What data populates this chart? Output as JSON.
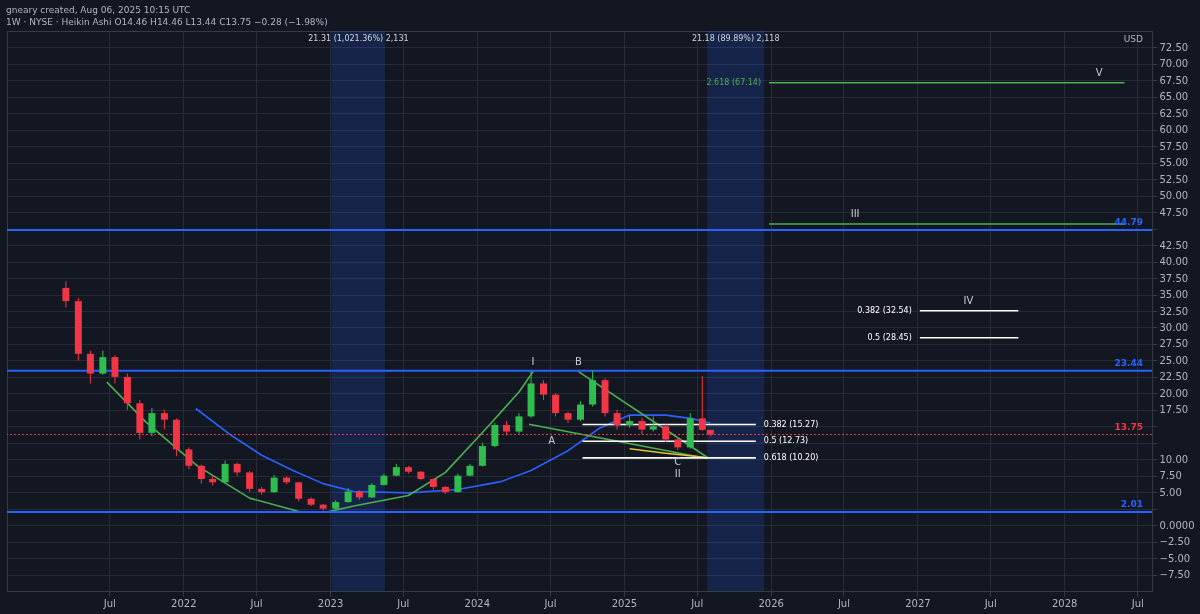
{
  "chart_data": {
    "type": "candlestick",
    "title": "gneary created, Aug 06, 2025 10:15 UTC",
    "subtitle": "1W · NYSE · Heikin Ashi  O14.46  H14.46  L13.44  C13.75  −0.28 (−1.98%)",
    "x": [
      "2021-03-15",
      "2021-04-15",
      "2021-05-15",
      "2021-06-15",
      "2021-07-15",
      "2021-08-15",
      "2021-09-15",
      "2021-10-15",
      "2021-11-15",
      "2021-12-15",
      "2022-01-15",
      "2022-02-15",
      "2022-03-15",
      "2022-04-15",
      "2022-05-15",
      "2022-06-15",
      "2022-07-15",
      "2022-08-15",
      "2022-09-15",
      "2022-10-15",
      "2022-11-15",
      "2022-12-15",
      "2023-01-15",
      "2023-02-15",
      "2023-03-15",
      "2023-04-15",
      "2023-05-15",
      "2023-06-15",
      "2023-07-15",
      "2023-08-15",
      "2023-09-15",
      "2023-10-15",
      "2023-11-15",
      "2023-12-15",
      "2024-01-15",
      "2024-02-15",
      "2024-03-15",
      "2024-04-15",
      "2024-05-15",
      "2024-06-15",
      "2024-07-15",
      "2024-08-15",
      "2024-09-15",
      "2024-10-15",
      "2024-11-15",
      "2024-12-15",
      "2025-01-15",
      "2025-02-15",
      "2025-03-15",
      "2025-04-15",
      "2025-05-15",
      "2025-06-15",
      "2025-07-15",
      "2025-08-04"
    ],
    "ohlc": [
      [
        36,
        37,
        33,
        34
      ],
      [
        34,
        34.5,
        25,
        26
      ],
      [
        26,
        26.5,
        21.5,
        23
      ],
      [
        23,
        26.5,
        22.8,
        25.5
      ],
      [
        25.5,
        25.8,
        21.5,
        22.5
      ],
      [
        22.5,
        23,
        17.5,
        18.5
      ],
      [
        18.5,
        19,
        13,
        14
      ],
      [
        14,
        17.8,
        13.5,
        17
      ],
      [
        17,
        17.5,
        14.5,
        16
      ],
      [
        16,
        16.2,
        10.5,
        11.5
      ],
      [
        11.5,
        11.8,
        8.5,
        9
      ],
      [
        9,
        9.2,
        6.3,
        7
      ],
      [
        7,
        7.5,
        6,
        6.5
      ],
      [
        6.5,
        9.8,
        6.3,
        9.3
      ],
      [
        9.3,
        9.5,
        7.5,
        8
      ],
      [
        8,
        8.2,
        5,
        5.5
      ],
      [
        5.5,
        5.8,
        4.6,
        5
      ],
      [
        5,
        7.6,
        4.9,
        7.2
      ],
      [
        7.2,
        7.4,
        6.2,
        6.5
      ],
      [
        6.5,
        6.6,
        3.6,
        4
      ],
      [
        4,
        4.2,
        2.9,
        3.1
      ],
      [
        3.1,
        3.2,
        2.2,
        2.5
      ],
      [
        2.5,
        3.8,
        2.4,
        3.5
      ],
      [
        3.5,
        5.6,
        3.4,
        5.1
      ],
      [
        5.1,
        5.3,
        3.8,
        4.2
      ],
      [
        4.2,
        6.4,
        4.1,
        6.1
      ],
      [
        6.1,
        7.8,
        6,
        7.5
      ],
      [
        7.5,
        9.3,
        7.4,
        8.8
      ],
      [
        8.8,
        9,
        7.8,
        8.1
      ],
      [
        8.1,
        8.2,
        6.8,
        7
      ],
      [
        7,
        7.1,
        5.4,
        5.8
      ],
      [
        5.8,
        5.9,
        4.7,
        5
      ],
      [
        5,
        7.8,
        4.9,
        7.5
      ],
      [
        7.5,
        9.3,
        7.4,
        9
      ],
      [
        9,
        12.5,
        8.9,
        12
      ],
      [
        12,
        15.5,
        11.8,
        15.2
      ],
      [
        15.2,
        15.8,
        13.6,
        14.2
      ],
      [
        14.2,
        17,
        13.9,
        16.5
      ],
      [
        16.5,
        23.4,
        16.3,
        21.5
      ],
      [
        21.5,
        22,
        19,
        19.8
      ],
      [
        19.8,
        20,
        16.5,
        17
      ],
      [
        17,
        17.2,
        15.5,
        16
      ],
      [
        16,
        18.8,
        15.8,
        18.3
      ],
      [
        18.3,
        23.4,
        18,
        22
      ],
      [
        22,
        22.3,
        16.5,
        17
      ],
      [
        17,
        17.5,
        14.5,
        15.2
      ],
      [
        15.2,
        16.6,
        14.8,
        15.8
      ],
      [
        15.8,
        16.3,
        13.8,
        14.5
      ],
      [
        14.5,
        16.5,
        14.2,
        15
      ],
      [
        15,
        15.3,
        12.6,
        13
      ],
      [
        13,
        13.4,
        11.4,
        11.8
      ],
      [
        11.8,
        17,
        11.6,
        16.2
      ],
      [
        16.2,
        22.6,
        14.3,
        14.46
      ],
      [
        14.46,
        14.46,
        13.44,
        13.75
      ]
    ],
    "colors": [
      "#f23645",
      "#f23645",
      "#f23645",
      "#2ebd4e",
      "#f23645",
      "#f23645",
      "#f23645",
      "#2ebd4e",
      "#f23645",
      "#f23645",
      "#f23645",
      "#f23645",
      "#f23645",
      "#2ebd4e",
      "#f23645",
      "#f23645",
      "#f23645",
      "#2ebd4e",
      "#f23645",
      "#f23645",
      "#f23645",
      "#f23645",
      "#2ebd4e",
      "#2ebd4e",
      "#f23645",
      "#2ebd4e",
      "#2ebd4e",
      "#2ebd4e",
      "#f23645",
      "#f23645",
      "#f23645",
      "#f23645",
      "#2ebd4e",
      "#2ebd4e",
      "#2ebd4e",
      "#2ebd4e",
      "#f23645",
      "#2ebd4e",
      "#2ebd4e",
      "#f23645",
      "#f23645",
      "#f23645",
      "#2ebd4e",
      "#2ebd4e",
      "#f23645",
      "#f23645",
      "#2ebd4e",
      "#f23645",
      "#2ebd4e",
      "#f23645",
      "#f23645",
      "#2ebd4e",
      "#f23645",
      "#f23645"
    ],
    "series": [
      {
        "type": "line",
        "color": "#2962ff",
        "x": [
          "2022-02-01",
          "2022-05-01",
          "2022-07-15",
          "2022-10-01",
          "2022-12-15",
          "2023-03-01",
          "2023-07-15",
          "2023-11-15",
          "2024-03-01",
          "2024-05-15",
          "2024-08-15",
          "2024-11-01",
          "2025-01-15",
          "2025-04-15",
          "2025-06-15",
          "2025-08-04"
        ],
        "values": [
          17.7,
          13.6,
          10.6,
          8.3,
          6.3,
          5.1,
          4.9,
          5.4,
          6.6,
          8.3,
          11.3,
          14.7,
          16.7,
          16.7,
          16.2,
          15.5
        ]
      },
      {
        "type": "line",
        "color": "#4caf50",
        "x": [
          "2021-06-25",
          "2021-10-01",
          "2022-02-05",
          "2022-06-15",
          "2022-10-20",
          "2022-12-25",
          "2023-03-01",
          "2023-07-15",
          "2023-10-15",
          "2024-01-25",
          "2024-04-15",
          "2024-05-20"
        ],
        "values": [
          21.7,
          15.6,
          9,
          4.1,
          2.0,
          2.0,
          2.9,
          4.5,
          8,
          14.7,
          20.2,
          23.3
        ]
      },
      {
        "type": "line",
        "color": "#4caf50",
        "x": [
          "2024-09-10",
          "2025-07-27"
        ],
        "values": [
          23.3,
          10.3
        ]
      },
      {
        "type": "line",
        "color": "#4caf50",
        "x": [
          "2024-05-10",
          "2025-07-27"
        ],
        "values": [
          15.3,
          10.1
        ]
      },
      {
        "type": "line",
        "color": "#e6c229",
        "x": [
          "2025-01-15",
          "2025-04-15",
          "2025-07-20"
        ],
        "values": [
          11.6,
          10.9,
          10.3
        ]
      },
      {
        "type": "line",
        "name": "0.382 (15.27)",
        "color": "#ffffff",
        "x": [
          "2024-09-20",
          "2025-11-25"
        ],
        "values": [
          15.27,
          15.27
        ]
      },
      {
        "type": "line",
        "name": "0.5 (12.73)",
        "color": "#ffffff",
        "x": [
          "2024-09-20",
          "2025-11-25"
        ],
        "values": [
          12.73,
          12.73
        ]
      },
      {
        "type": "line",
        "name": "0.618 (10.20)",
        "color": "#ffffff",
        "x": [
          "2024-09-20",
          "2025-11-25"
        ],
        "values": [
          10.2,
          10.2
        ]
      },
      {
        "type": "line",
        "name": "2.618 (67.14)",
        "color": "#4caf50",
        "x": [
          "2025-12-28",
          "2028-05-30"
        ],
        "values": [
          67.14,
          67.14
        ]
      },
      {
        "type": "line",
        "color": "#4caf50",
        "x": [
          "2025-12-28",
          "2028-05-30"
        ],
        "values": [
          45.7,
          45.7
        ]
      },
      {
        "type": "line",
        "name": "0.382 (32.54)",
        "color": "#ffffff",
        "x": [
          "2027-01-07",
          "2027-09-09"
        ],
        "values": [
          32.54,
          32.54
        ]
      },
      {
        "type": "line",
        "name": "0.5 (28.45)",
        "color": "#ffffff",
        "x": [
          "2027-01-07",
          "2027-09-09"
        ],
        "values": [
          28.45,
          28.45
        ]
      }
    ],
    "ref_lines": [
      {
        "axis": "y",
        "value": 44.79,
        "label": "44.79",
        "color": "#2962ff"
      },
      {
        "axis": "y",
        "value": 23.44,
        "label": "23.44",
        "color": "#2962ff"
      },
      {
        "axis": "y",
        "value": 2.01,
        "label": "2.01",
        "color": "#2962ff"
      },
      {
        "axis": "y",
        "value": 13.75,
        "label": "13.75",
        "color": "#f23645",
        "line_style": "dotted"
      }
    ],
    "bands": [
      {
        "axis": "x",
        "from": "2023-01-05",
        "to": "2023-05-18",
        "label": "21.31 (1,021.36%) 2,131",
        "color": "#2962ff"
      },
      {
        "axis": "x",
        "from": "2025-07-27",
        "to": "2025-12-16",
        "label": "21.18 (89.89%) 2,118",
        "color": "#2962ff"
      }
    ],
    "annotations": [
      "USD",
      {
        "text": "I",
        "x": "2024-05-20",
        "y": 23.3
      },
      {
        "text": "B",
        "x": "2024-09-10",
        "y": 23.3
      },
      {
        "text": "A",
        "x": "2024-07-05",
        "y": 14.6
      },
      {
        "text": "C",
        "x": "2025-05-15",
        "y": 11.4
      },
      {
        "text": "II",
        "x": "2025-05-15",
        "y": 11.4
      },
      {
        "text": "III",
        "x": "2026-07-30",
        "y": 45.7
      },
      {
        "text": "IV",
        "x": "2027-05-08",
        "y": 32.54
      },
      {
        "text": "V",
        "x": "2028-03-28",
        "y": 67.14
      }
    ],
    "xlim": [
      "2020-11-01",
      "2028-07-25"
    ],
    "xticks": [
      {
        "value": "2021-07-01",
        "label": "Jul"
      },
      {
        "value": "2022-01-01",
        "label": "2022"
      },
      {
        "value": "2022-07-01",
        "label": "Jul"
      },
      {
        "value": "2023-01-01",
        "label": "2023"
      },
      {
        "value": "2023-07-01",
        "label": "Jul"
      },
      {
        "value": "2024-01-01",
        "label": "2024"
      },
      {
        "value": "2024-07-01",
        "label": "Jul"
      },
      {
        "value": "2025-01-01",
        "label": "2025"
      },
      {
        "value": "2025-07-01",
        "label": "Jul"
      },
      {
        "value": "2026-01-01",
        "label": "2026"
      },
      {
        "value": "2026-07-01",
        "label": "Jul"
      },
      {
        "value": "2027-01-01",
        "label": "2027"
      },
      {
        "value": "2027-07-01",
        "label": "Jul"
      },
      {
        "value": "2028-01-01",
        "label": "2028"
      },
      {
        "value": "2028-07-01",
        "label": "Jul"
      }
    ],
    "ylim": [
      -10,
      75
    ],
    "yticks": [
      {
        "value": -7.5,
        "label": "−7.50"
      },
      {
        "value": -5,
        "label": "−5.00"
      },
      {
        "value": -2.5,
        "label": "−2.50"
      },
      {
        "value": 0,
        "label": "0.0000"
      },
      {
        "value": 2.5,
        "label": null
      },
      {
        "value": 5,
        "label": "5.00"
      },
      {
        "value": 7.5,
        "label": "7.50"
      },
      {
        "value": 10,
        "label": "10.00"
      },
      {
        "value": 12.5,
        "label": null
      },
      {
        "value": 15,
        "label": null
      },
      {
        "value": 17.5,
        "label": "17.50"
      },
      {
        "value": 20,
        "label": "20.00"
      },
      {
        "value": 22.5,
        "label": "22.50"
      },
      {
        "value": 25,
        "label": "25.00"
      },
      {
        "value": 27.5,
        "label": "27.50"
      },
      {
        "value": 30,
        "label": "30.00"
      },
      {
        "value": 32.5,
        "label": "32.50"
      },
      {
        "value": 35,
        "label": "35.00"
      },
      {
        "value": 37.5,
        "label": "37.50"
      },
      {
        "value": 40,
        "label": "40.00"
      },
      {
        "value": 42.5,
        "label": "42.50"
      },
      {
        "value": 45,
        "label": null
      },
      {
        "value": 47.5,
        "label": "47.50"
      },
      {
        "value": 50,
        "label": "50.00"
      },
      {
        "value": 52.5,
        "label": "52.50"
      },
      {
        "value": 55,
        "label": "55.00"
      },
      {
        "value": 57.5,
        "label": "57.50"
      },
      {
        "value": 60,
        "label": "60.00"
      },
      {
        "value": 62.5,
        "label": "62.50"
      },
      {
        "value": 65,
        "label": "65.00"
      },
      {
        "value": 67.5,
        "label": "67.50"
      },
      {
        "value": 70,
        "label": "70.00"
      },
      {
        "value": 72.5,
        "label": "72.50"
      }
    ],
    "grid": true
  }
}
